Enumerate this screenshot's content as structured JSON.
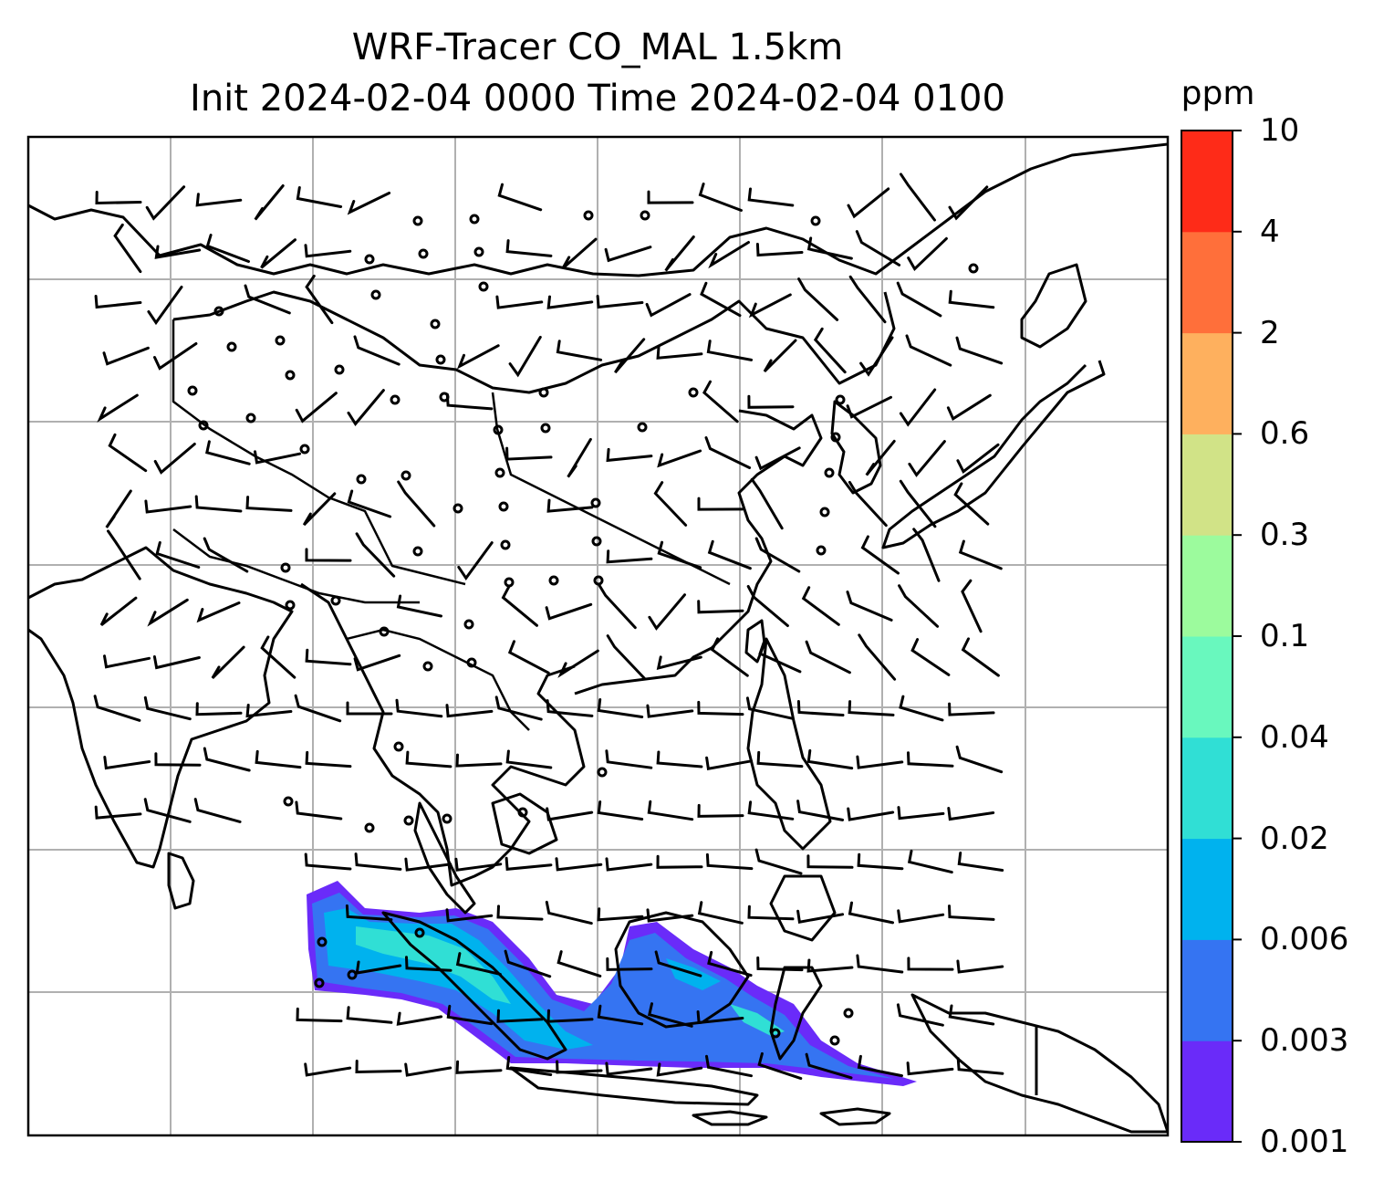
{
  "title": {
    "line1": "WRF-Tracer CO_MAL 1.5km",
    "line2": "Init 2024-02-04 0000 Time 2024-02-04 0100"
  },
  "colorbar": {
    "unit": "ppm",
    "tick_labels": [
      "0.001",
      "0.003",
      "0.006",
      "0.02",
      "0.04",
      "0.1",
      "0.3",
      "0.6",
      "2",
      "4",
      "10"
    ],
    "colors": [
      "#6a2bf9",
      "#3574f2",
      "#00b2ee",
      "#30dfd5",
      "#69f8be",
      "#9cfb9d",
      "#d1e387",
      "#feb05e",
      "#ff6f3a",
      "#fe2b18"
    ]
  },
  "map": {
    "projection": "lat-lon grid, no tick labels",
    "gridlines": true,
    "wind_barbs": true,
    "tracer_field": "CO_MAL plume over Sumatra / Java region"
  }
}
